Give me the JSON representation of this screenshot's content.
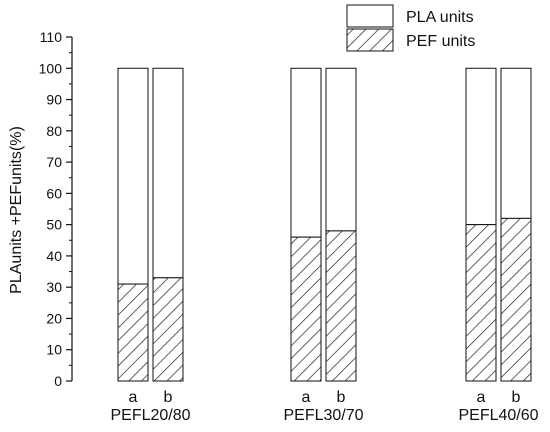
{
  "chart_data": {
    "type": "bar",
    "stacked": true,
    "groups": [
      "PEFL20/80",
      "PEFL30/70",
      "PEFL40/60"
    ],
    "sub_labels": [
      "a",
      "b"
    ],
    "series": [
      {
        "name": "PEF units",
        "values": [
          [
            31,
            33
          ],
          [
            46,
            48
          ],
          [
            50,
            52
          ]
        ],
        "pattern": "hatched"
      },
      {
        "name": "PLA units",
        "values": [
          [
            69,
            67
          ],
          [
            54,
            52
          ],
          [
            50,
            48
          ]
        ],
        "pattern": "white"
      }
    ],
    "ylabel": "PLAunits +PEFunits(%)",
    "xlabel": "",
    "ylim": [
      0,
      110
    ],
    "yticks": [
      0,
      10,
      20,
      30,
      40,
      50,
      60,
      70,
      80,
      90,
      100,
      110
    ],
    "legend_position": "top-right",
    "grid": false
  }
}
